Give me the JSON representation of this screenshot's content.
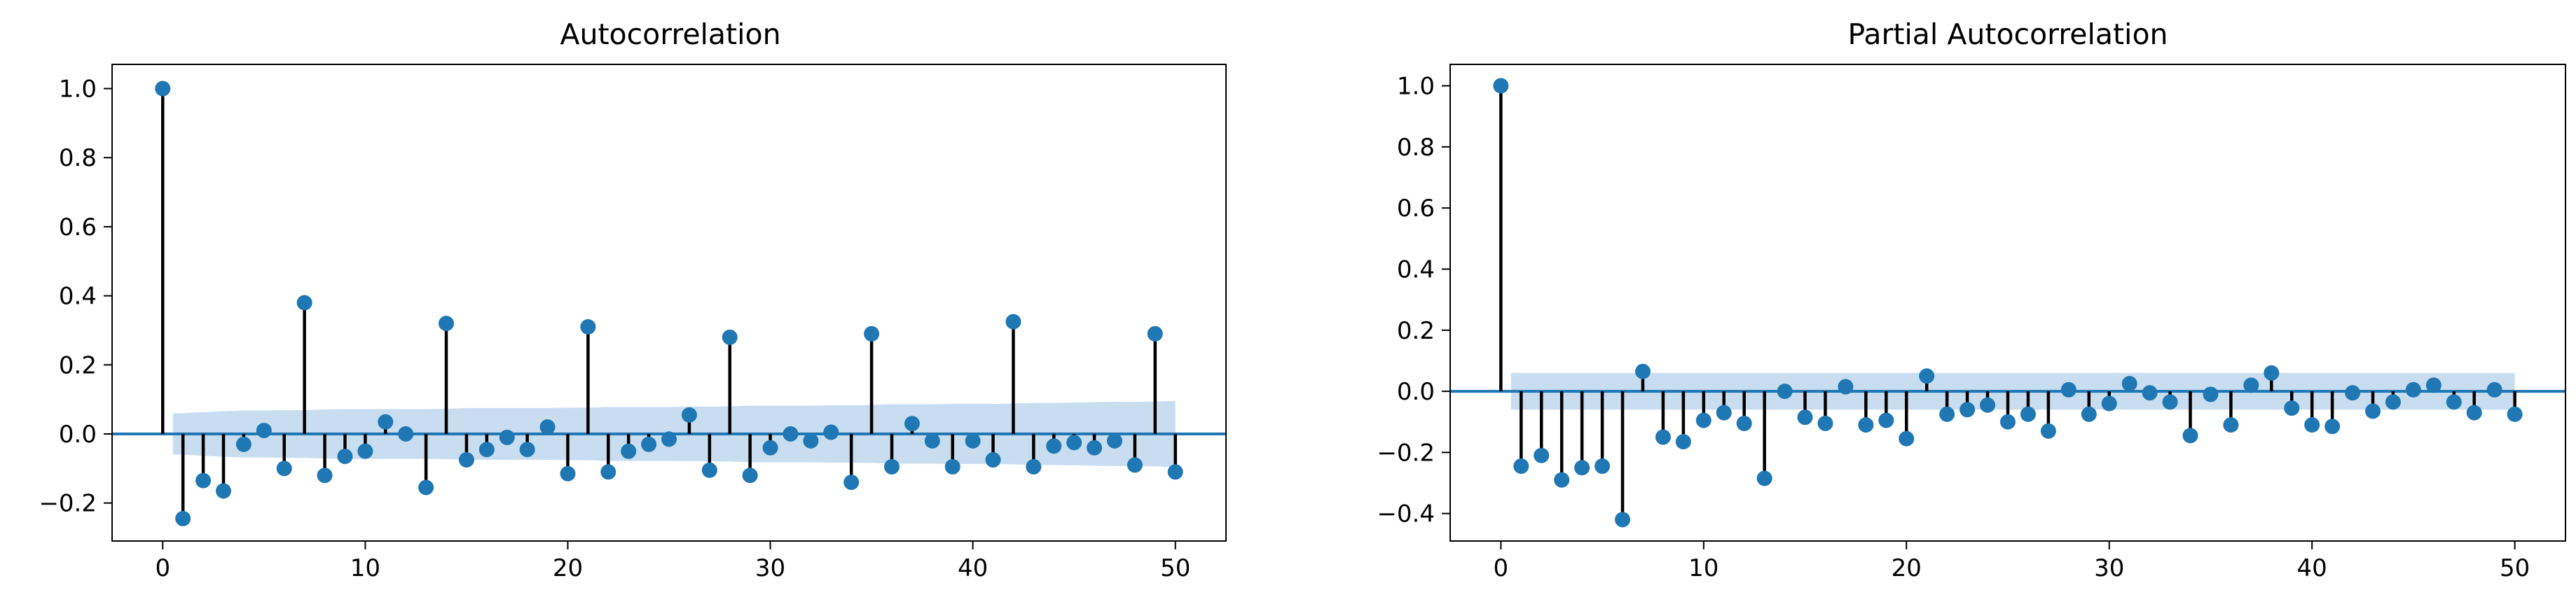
{
  "chart_data": [
    {
      "type": "stem",
      "title": "Autocorrelation",
      "xlabel": "",
      "ylabel": "",
      "xlim": [
        -2.5,
        52.5
      ],
      "ylim": [
        -0.31,
        1.07
      ],
      "xticks": [
        0,
        10,
        20,
        30,
        40,
        50
      ],
      "yticks": [
        -0.2,
        0.0,
        0.2,
        0.4,
        0.6,
        0.8,
        1.0
      ],
      "grid": false,
      "lags": [
        0,
        1,
        2,
        3,
        4,
        5,
        6,
        7,
        8,
        9,
        10,
        11,
        12,
        13,
        14,
        15,
        16,
        17,
        18,
        19,
        20,
        21,
        22,
        23,
        24,
        25,
        26,
        27,
        28,
        29,
        30,
        31,
        32,
        33,
        34,
        35,
        36,
        37,
        38,
        39,
        40,
        41,
        42,
        43,
        44,
        45,
        46,
        47,
        48,
        49,
        50
      ],
      "values": [
        1.0,
        -0.245,
        -0.135,
        -0.165,
        -0.03,
        0.01,
        -0.1,
        0.38,
        -0.12,
        -0.065,
        -0.05,
        0.035,
        0.0,
        -0.155,
        0.32,
        -0.075,
        -0.045,
        -0.01,
        -0.045,
        0.02,
        -0.115,
        0.31,
        -0.11,
        -0.05,
        -0.03,
        -0.015,
        0.055,
        -0.105,
        0.28,
        -0.12,
        -0.04,
        0.0,
        -0.02,
        0.005,
        -0.14,
        0.29,
        -0.095,
        0.03,
        -0.02,
        -0.095,
        -0.02,
        -0.075,
        0.325,
        -0.095,
        -0.035,
        -0.025,
        -0.04,
        -0.02,
        -0.09,
        0.29,
        -0.11
      ],
      "confint_upper": [
        0.0,
        0.06,
        0.063,
        0.066,
        0.068,
        0.068,
        0.069,
        0.069,
        0.071,
        0.072,
        0.072,
        0.072,
        0.072,
        0.072,
        0.073,
        0.075,
        0.075,
        0.075,
        0.075,
        0.075,
        0.076,
        0.076,
        0.078,
        0.078,
        0.078,
        0.078,
        0.079,
        0.079,
        0.08,
        0.082,
        0.082,
        0.082,
        0.082,
        0.083,
        0.083,
        0.084,
        0.086,
        0.086,
        0.086,
        0.087,
        0.087,
        0.087,
        0.088,
        0.09,
        0.09,
        0.091,
        0.092,
        0.093,
        0.093,
        0.094,
        0.096
      ],
      "colors": {
        "marker": "#1f77b4",
        "stem": "#000000",
        "band": "#c6dbef",
        "zero_line": "#1f77b4"
      }
    },
    {
      "type": "stem",
      "title": "Partial Autocorrelation",
      "xlabel": "",
      "ylabel": "",
      "xlim": [
        -2.5,
        52.5
      ],
      "ylim": [
        -0.49,
        1.07
      ],
      "xticks": [
        0,
        10,
        20,
        30,
        40,
        50
      ],
      "yticks": [
        -0.4,
        -0.2,
        0.0,
        0.2,
        0.4,
        0.6,
        0.8,
        1.0
      ],
      "grid": false,
      "lags": [
        0,
        1,
        2,
        3,
        4,
        5,
        6,
        7,
        8,
        9,
        10,
        11,
        12,
        13,
        14,
        15,
        16,
        17,
        18,
        19,
        20,
        21,
        22,
        23,
        24,
        25,
        26,
        27,
        28,
        29,
        30,
        31,
        32,
        33,
        34,
        35,
        36,
        37,
        38,
        39,
        40,
        41,
        42,
        43,
        44,
        45,
        46,
        47,
        48,
        49,
        50
      ],
      "values": [
        1.0,
        -0.245,
        -0.21,
        -0.29,
        -0.25,
        -0.245,
        -0.42,
        0.065,
        -0.15,
        -0.165,
        -0.095,
        -0.07,
        -0.105,
        -0.285,
        0.0,
        -0.085,
        -0.105,
        0.015,
        -0.11,
        -0.095,
        -0.155,
        0.05,
        -0.075,
        -0.06,
        -0.045,
        -0.1,
        -0.075,
        -0.13,
        0.005,
        -0.075,
        -0.04,
        0.025,
        -0.005,
        -0.035,
        -0.145,
        -0.01,
        -0.11,
        0.02,
        0.06,
        -0.055,
        -0.11,
        -0.115,
        -0.005,
        -0.065,
        -0.035,
        0.005,
        0.02,
        -0.035,
        -0.07,
        0.005,
        -0.075
      ],
      "confint_upper": [
        0.0,
        0.06,
        0.06,
        0.06,
        0.06,
        0.06,
        0.06,
        0.06,
        0.06,
        0.06,
        0.06,
        0.06,
        0.06,
        0.06,
        0.06,
        0.06,
        0.06,
        0.06,
        0.06,
        0.06,
        0.06,
        0.06,
        0.06,
        0.06,
        0.06,
        0.06,
        0.06,
        0.06,
        0.06,
        0.06,
        0.06,
        0.06,
        0.06,
        0.06,
        0.06,
        0.06,
        0.06,
        0.06,
        0.06,
        0.06,
        0.06,
        0.06,
        0.06,
        0.06,
        0.06,
        0.06,
        0.06,
        0.06,
        0.06,
        0.06,
        0.06
      ],
      "colors": {
        "marker": "#1f77b4",
        "stem": "#000000",
        "band": "#c6dbef",
        "zero_line": "#1f77b4"
      }
    }
  ]
}
